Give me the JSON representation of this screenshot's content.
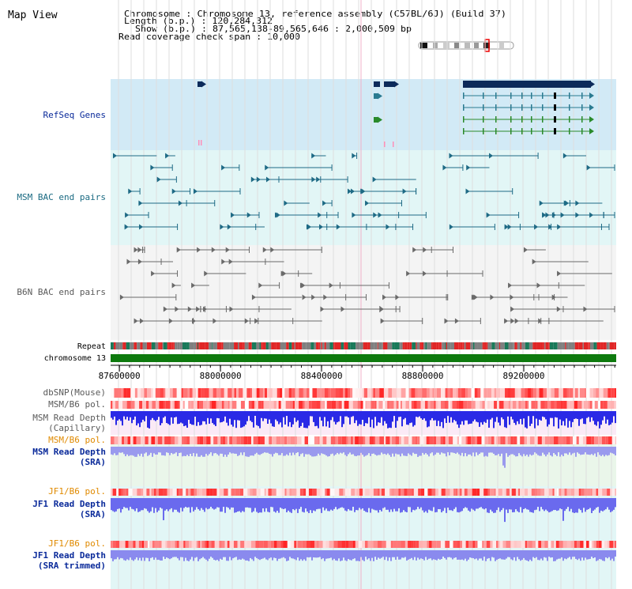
{
  "header": {
    "title": "Map View",
    "info_lines": [
      "Chromosome     : Chromosome 13, reference assembly (C57BL/6J) (Build 37)",
      "Length (b.p.) : 120,284,312",
      "Show (b.p.) : 87,565,138-89,565,646 : 2,000,509 bp",
      "Read coverage check span : 10,000"
    ]
  },
  "tracks": {
    "refseq_genes": "RefSeq Genes",
    "msm_bac": "MSM BAC end pairs",
    "b6n_bac": "B6N BAC end pairs",
    "repeat": "Repeat",
    "chromosome": "chromosome 13",
    "dbsnp": "dbSNP(Mouse)",
    "msm_b6_pol_1": "MSM/B6 pol.",
    "msm_read_depth_cap_1": "MSM Read Depth",
    "msm_read_depth_cap_2": "(Capillary)",
    "msm_b6_pol_2": "MSM/B6 pol.",
    "msm_read_depth_sra_1": "MSM Read Depth",
    "msm_read_depth_sra_2": "(SRA)",
    "jf1_b6_pol_1": "JF1/B6 pol.",
    "jf1_read_depth_sra_1": "JF1 Read Depth",
    "jf1_read_depth_sra_2": "(SRA)",
    "jf1_b6_pol_2": "JF1/B6 pol.",
    "jf1_read_depth_trim_1": "JF1 Read Depth",
    "jf1_read_depth_trim_2": "(SRA trimmed)"
  },
  "axis": {
    "ticks": [
      "87600000",
      "88000000",
      "88400000",
      "88800000",
      "89200000"
    ],
    "tick_values": [
      87600000,
      88000000,
      88400000,
      88800000,
      89200000
    ],
    "range": [
      87565138,
      89565646
    ]
  },
  "colors": {
    "label_navy": "#0a2a9a",
    "label_teal": "#1a6a82",
    "label_gray": "#5a5a5a",
    "label_orange": "#e08a00",
    "gene_dark": "#0c2a5a",
    "gene_teal": "#2a7a90",
    "gene_green": "#2a8a2a",
    "bac_teal": "#1e6a85",
    "bac_gray": "#6a6a6a",
    "chrom_green": "#0e7a0e"
  }
}
